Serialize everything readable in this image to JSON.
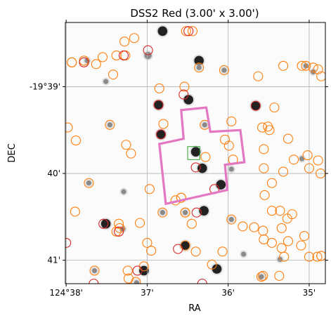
{
  "chart_data": {
    "type": "scatter",
    "title": "DSS2 Red (3.00' x 3.00')",
    "xlabel": "RA",
    "ylabel": "DEC",
    "axes": {
      "x_ticks": [
        {
          "value": 0.0,
          "label": "124°38'"
        },
        {
          "value": 1.0,
          "label": "37'"
        },
        {
          "value": 2.0,
          "label": "36'"
        },
        {
          "value": 3.0,
          "label": "35'"
        }
      ],
      "y_ticks": [
        {
          "value": 0.0,
          "label": "-19°39'"
        },
        {
          "value": 1.0,
          "label": "40'"
        },
        {
          "value": 2.0,
          "label": "41'"
        }
      ],
      "x_range": [
        -0.01,
        3.2
      ],
      "y_range": [
        -0.74,
        2.27
      ],
      "grid": true
    },
    "colors": {
      "catalog_circle": "#ff7f0e",
      "matched_circle": "#d62728",
      "footprint": "#e377c2",
      "target_box": "#2ca02c",
      "grid": "#b0b0b0"
    },
    "background_stars": [
      [
        1.19,
        -0.64,
        3
      ],
      [
        0.26,
        -0.3,
        1
      ],
      [
        0.49,
        -0.06,
        1
      ],
      [
        1.01,
        -0.36,
        2
      ],
      [
        1.64,
        -0.3,
        3
      ],
      [
        1.51,
        0.15,
        3
      ],
      [
        1.64,
        -0.22,
        1
      ],
      [
        1.95,
        -0.19,
        1
      ],
      [
        1.14,
        0.21,
        3
      ],
      [
        2.34,
        0.22,
        3
      ],
      [
        2.96,
        -0.24,
        1
      ],
      [
        3.05,
        -0.17,
        1
      ],
      [
        0.54,
        0.44,
        1
      ],
      [
        1.17,
        0.55,
        3
      ],
      [
        1.71,
        0.44,
        1
      ],
      [
        1.6,
        0.75,
        3
      ],
      [
        1.68,
        0.94,
        3
      ],
      [
        1.91,
        1.13,
        3
      ],
      [
        2.04,
        0.95,
        1
      ],
      [
        0.28,
        1.11,
        1
      ],
      [
        1.19,
        1.45,
        1
      ],
      [
        1.47,
        1.45,
        1
      ],
      [
        1.7,
        1.43,
        3
      ],
      [
        2.04,
        1.53,
        1
      ],
      [
        0.49,
        1.58,
        3
      ],
      [
        0.7,
        1.64,
        1
      ],
      [
        1.47,
        1.83,
        3
      ],
      [
        2.19,
        1.93,
        1
      ],
      [
        1.86,
        2.1,
        3
      ],
      [
        2.64,
        1.99,
        1
      ],
      [
        2.41,
        2.19,
        1
      ],
      [
        0.35,
        2.12,
        1
      ],
      [
        0.96,
        2.12,
        3
      ],
      [
        0.87,
        2.26,
        1
      ],
      [
        0.71,
        1.21,
        1
      ],
      [
        2.91,
        0.83,
        1
      ]
    ],
    "catalog_sources": [
      [
        0.84,
        -0.56
      ],
      [
        1.48,
        -0.64
      ],
      [
        1.56,
        -0.64
      ],
      [
        0.07,
        -0.28
      ],
      [
        0.22,
        -0.3
      ],
      [
        0.45,
        -0.34
      ],
      [
        0.62,
        -0.36
      ],
      [
        0.72,
        -0.52
      ],
      [
        0.73,
        -0.36
      ],
      [
        0.58,
        -0.14
      ],
      [
        1.46,
        0.0
      ],
      [
        1.64,
        -0.22
      ],
      [
        1.95,
        -0.19
      ],
      [
        2.37,
        -0.12
      ],
      [
        2.68,
        -0.24
      ],
      [
        2.91,
        -0.24
      ],
      [
        2.96,
        -0.24
      ],
      [
        3.05,
        -0.22
      ],
      [
        3.11,
        -0.2
      ],
      [
        3.15,
        -0.12
      ],
      [
        0.54,
        0.44
      ],
      [
        2.04,
        0.4
      ],
      [
        2.57,
        0.24
      ],
      [
        2.42,
        0.47
      ],
      [
        2.51,
        0.5
      ],
      [
        1.71,
        0.44
      ],
      [
        0.02,
        0.47
      ],
      [
        0.12,
        0.62
      ],
      [
        0.74,
        0.67
      ],
      [
        0.8,
        0.77
      ],
      [
        1.96,
        0.61
      ],
      [
        2.01,
        0.68
      ],
      [
        2.44,
        0.72
      ],
      [
        2.74,
        0.6
      ],
      [
        2.98,
        0.79
      ],
      [
        2.06,
        0.84
      ],
      [
        2.44,
        0.94
      ],
      [
        2.81,
        0.84
      ],
      [
        2.68,
        0.98
      ],
      [
        2.54,
        1.11
      ],
      [
        3.11,
        0.85
      ],
      [
        3.0,
        0.94
      ],
      [
        3.14,
        1.0
      ],
      [
        1.72,
        0.81
      ],
      [
        0.28,
        1.11
      ],
      [
        1.03,
        1.18
      ],
      [
        1.35,
        1.31
      ],
      [
        1.42,
        1.28
      ],
      [
        2.45,
        1.25
      ],
      [
        0.11,
        1.44
      ],
      [
        1.19,
        1.45
      ],
      [
        1.47,
        1.45
      ],
      [
        2.04,
        1.53
      ],
      [
        2.54,
        1.43
      ],
      [
        2.64,
        1.43
      ],
      [
        2.79,
        1.47
      ],
      [
        0.65,
        1.58
      ],
      [
        0.91,
        1.57
      ],
      [
        0.62,
        1.67
      ],
      [
        0.66,
        1.63
      ],
      [
        1.55,
        1.58
      ],
      [
        2.18,
        1.61
      ],
      [
        2.32,
        1.62
      ],
      [
        2.43,
        1.66
      ],
      [
        2.73,
        1.52
      ],
      [
        2.44,
        1.76
      ],
      [
        2.54,
        1.8
      ],
      [
        2.74,
        1.78
      ],
      [
        2.66,
        1.86
      ],
      [
        2.94,
        1.72
      ],
      [
        1.05,
        1.89
      ],
      [
        1.47,
        1.83
      ],
      [
        1.6,
        1.9
      ],
      [
        1.93,
        1.9
      ],
      [
        2.69,
        1.96
      ],
      [
        2.9,
        1.83
      ],
      [
        3.1,
        1.96
      ],
      [
        3.15,
        1.95
      ],
      [
        0.96,
        2.07
      ],
      [
        0.77,
        2.21
      ],
      [
        2.43,
        2.18
      ],
      [
        0.35,
        2.12
      ],
      [
        0.86,
        2.25
      ],
      [
        2.41,
        2.19
      ],
      [
        2.63,
        2.18
      ],
      [
        1.8,
        2.05
      ],
      [
        3.0,
        1.96
      ],
      [
        0.76,
        2.12
      ],
      [
        3.15,
        1.95
      ],
      [
        0.07,
        -0.28
      ],
      [
        1.47,
        1.45
      ],
      [
        1.42,
        1.28
      ],
      [
        0.37,
        -0.26
      ],
      [
        0.22,
        -0.3
      ],
      [
        1.0,
        1.8
      ],
      [
        1.15,
        0.02
      ],
      [
        1.2,
        0.43
      ],
      [
        2.66,
        1.63
      ],
      [
        2.49,
        0.46
      ]
    ],
    "matched_sources": [
      [
        0.0,
        1.8
      ],
      [
        0.84,
        -0.86
      ],
      [
        1.51,
        -0.64
      ],
      [
        1.01,
        -0.42
      ],
      [
        0.22,
        -0.28
      ],
      [
        0.71,
        -0.36
      ],
      [
        1.45,
        0.09
      ],
      [
        1.14,
        0.21
      ],
      [
        2.34,
        0.22
      ],
      [
        1.17,
        0.55
      ],
      [
        1.6,
        0.93
      ],
      [
        1.83,
        1.18
      ],
      [
        1.61,
        1.45
      ],
      [
        0.46,
        1.58
      ],
      [
        0.65,
        1.67
      ],
      [
        1.38,
        1.87
      ],
      [
        0.88,
        2.12
      ],
      [
        0.34,
        2.27
      ],
      [
        1.68,
        2.27
      ]
    ],
    "footprint_polygon": [
      [
        1.42,
        0.27
      ],
      [
        1.73,
        0.24
      ],
      [
        1.78,
        0.52
      ],
      [
        2.15,
        0.5
      ],
      [
        2.2,
        0.87
      ],
      [
        1.96,
        0.9
      ],
      [
        1.99,
        1.19
      ],
      [
        1.23,
        1.35
      ],
      [
        1.15,
        0.66
      ],
      [
        1.45,
        0.6
      ]
    ],
    "target_box": [
      1.5,
      0.69,
      1.65,
      0.84
    ]
  }
}
